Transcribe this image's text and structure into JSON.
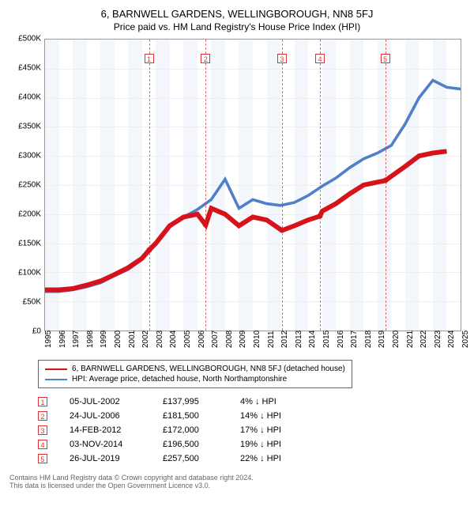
{
  "title": "6, BARNWELL GARDENS, WELLINGBOROUGH, NN8 5FJ",
  "subtitle": "Price paid vs. HM Land Registry's House Price Index (HPI)",
  "chart": {
    "type": "line",
    "xlim": [
      1995,
      2025
    ],
    "ylim": [
      0,
      500000
    ],
    "ytick_step": 50000,
    "ytick_labels": [
      "£0",
      "£50K",
      "£100K",
      "£150K",
      "£200K",
      "£250K",
      "£300K",
      "£350K",
      "£400K",
      "£450K",
      "£500K"
    ],
    "xtick_step": 1,
    "grid_color": "#eeeeee",
    "band_even_color": "#f3f6fb",
    "band_odd_color": "#ffffff",
    "vdash_color": "#d33333",
    "series_property": {
      "label": "6, BARNWELL GARDENS, WELLINGBOROUGH, NN8 5FJ (detached house)",
      "color": "#d6121b",
      "width": 2,
      "data": [
        [
          1995,
          70000
        ],
        [
          1996,
          70000
        ],
        [
          1997,
          72000
        ],
        [
          1998,
          78000
        ],
        [
          1999,
          85000
        ],
        [
          2000,
          96000
        ],
        [
          2001,
          108000
        ],
        [
          2002,
          124000
        ],
        [
          2002.5,
          137995
        ],
        [
          2003,
          150000
        ],
        [
          2004,
          180000
        ],
        [
          2005,
          195000
        ],
        [
          2006,
          200000
        ],
        [
          2006.6,
          181500
        ],
        [
          2007,
          210000
        ],
        [
          2008,
          200000
        ],
        [
          2009,
          180000
        ],
        [
          2010,
          195000
        ],
        [
          2011,
          190000
        ],
        [
          2012.1,
          172000
        ],
        [
          2013,
          180000
        ],
        [
          2014,
          190000
        ],
        [
          2014.85,
          196500
        ],
        [
          2015,
          205000
        ],
        [
          2016,
          218000
        ],
        [
          2017,
          235000
        ],
        [
          2018,
          250000
        ],
        [
          2019,
          255000
        ],
        [
          2019.56,
          257500
        ],
        [
          2020,
          265000
        ],
        [
          2021,
          282000
        ],
        [
          2022,
          300000
        ],
        [
          2023,
          305000
        ],
        [
          2024,
          308000
        ]
      ]
    },
    "series_hpi": {
      "label": "HPI: Average price, detached house, North Northamptonshire",
      "color": "#4f7fc9",
      "width": 1.2,
      "data": [
        [
          1995,
          67000
        ],
        [
          1996,
          67000
        ],
        [
          1997,
          70000
        ],
        [
          1998,
          75000
        ],
        [
          1999,
          82000
        ],
        [
          2000,
          94000
        ],
        [
          2001,
          105000
        ],
        [
          2002,
          122000
        ],
        [
          2003,
          148000
        ],
        [
          2004,
          178000
        ],
        [
          2005,
          195000
        ],
        [
          2006,
          208000
        ],
        [
          2007,
          225000
        ],
        [
          2008,
          260000
        ],
        [
          2009,
          210000
        ],
        [
          2010,
          225000
        ],
        [
          2011,
          218000
        ],
        [
          2012,
          215000
        ],
        [
          2013,
          220000
        ],
        [
          2014,
          232000
        ],
        [
          2015,
          248000
        ],
        [
          2016,
          262000
        ],
        [
          2017,
          280000
        ],
        [
          2018,
          295000
        ],
        [
          2019,
          305000
        ],
        [
          2020,
          318000
        ],
        [
          2021,
          355000
        ],
        [
          2022,
          400000
        ],
        [
          2023,
          430000
        ],
        [
          2024,
          418000
        ],
        [
          2025,
          415000
        ]
      ]
    },
    "markers": [
      {
        "x": 2002.5,
        "y": 137995
      },
      {
        "x": 2006.6,
        "y": 181500
      },
      {
        "x": 2012.1,
        "y": 172000
      },
      {
        "x": 2014.85,
        "y": 196500
      },
      {
        "x": 2019.56,
        "y": 257500
      }
    ]
  },
  "transactions": [
    {
      "idx": "1",
      "date": "05-JUL-2002",
      "price": "£137,995",
      "diff": "4% ↓ HPI",
      "x": 2002.5
    },
    {
      "idx": "2",
      "date": "24-JUL-2006",
      "price": "£181,500",
      "diff": "14% ↓ HPI",
      "x": 2006.6
    },
    {
      "idx": "3",
      "date": "14-FEB-2012",
      "price": "£172,000",
      "diff": "17% ↓ HPI",
      "x": 2012.1
    },
    {
      "idx": "4",
      "date": "03-NOV-2014",
      "price": "£196,500",
      "diff": "19% ↓ HPI",
      "x": 2014.85
    },
    {
      "idx": "5",
      "date": "26-JUL-2019",
      "price": "£257,500",
      "diff": "22% ↓ HPI",
      "x": 2019.56
    }
  ],
  "footer_line1": "Contains HM Land Registry data © Crown copyright and database right 2024.",
  "footer_line2": "This data is licensed under the Open Government Licence v3.0."
}
